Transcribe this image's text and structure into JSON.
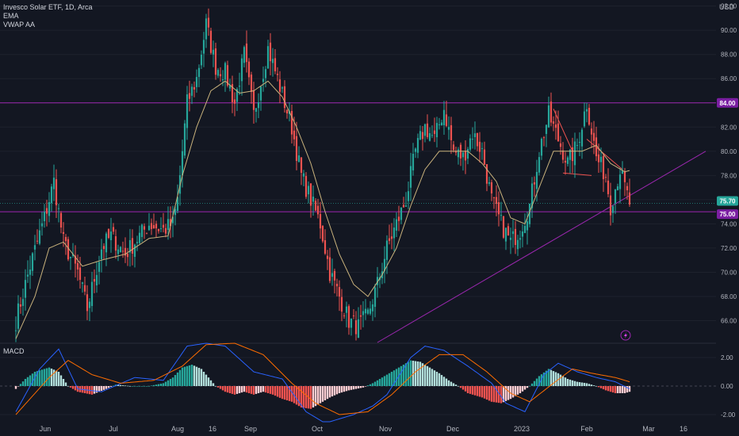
{
  "legend": {
    "title": "Invesco Solar ETF, 1D, Arca",
    "ind1": "EMA",
    "ind2": "VWAP AA"
  },
  "macd_label": "MACD",
  "currency": "USD",
  "colors": {
    "background": "#131722",
    "up": "#26a69a",
    "down": "#ef5350",
    "ema": "#c9b27c",
    "level_line": "#9c27b0",
    "trendline": "#9c27b0",
    "macd_line": "#2962ff",
    "signal_line": "#ff6d00",
    "price_tag": "#26a69a"
  },
  "chart_data": [
    {
      "type": "candlestick",
      "title": "Invesco Solar ETF, 1D, Arca",
      "x_labels": [
        "Jun",
        "Jul",
        "Aug",
        "16",
        "Sep",
        "Oct",
        "Nov",
        "Dec",
        "2023",
        "Feb",
        "Mar",
        "16"
      ],
      "y_ticks": [
        "92.00",
        "90.00",
        "88.00",
        "86.00",
        "84.00",
        "82.00",
        "80.00",
        "78.00",
        "76.00",
        "74.00",
        "72.00",
        "70.00",
        "68.00",
        "66.00"
      ],
      "ylim": [
        64.2,
        92.5
      ],
      "price_tags": [
        {
          "label": "84.00",
          "value": 84.0,
          "color": "#7b1fa2"
        },
        {
          "label": "75.70",
          "value": 75.7,
          "color": "#26a69a"
        },
        {
          "label": "75.00",
          "value": 75.0,
          "color": "#7b1fa2"
        }
      ],
      "horizontal_levels": [
        84.0,
        75.0
      ],
      "close_anchors": [
        [
          0,
          66.0
        ],
        [
          6,
          70.5
        ],
        [
          12,
          74.5
        ],
        [
          16,
          77.5
        ],
        [
          20,
          72.5
        ],
        [
          26,
          70.0
        ],
        [
          30,
          67.0
        ],
        [
          36,
          72.0
        ],
        [
          40,
          73.0
        ],
        [
          46,
          71.5
        ],
        [
          50,
          72.5
        ],
        [
          56,
          74.0
        ],
        [
          62,
          73.5
        ],
        [
          66,
          74.0
        ],
        [
          68,
          76.0
        ],
        [
          72,
          84.0
        ],
        [
          76,
          86.0
        ],
        [
          80,
          90.5
        ],
        [
          84,
          87.0
        ],
        [
          88,
          86.5
        ],
        [
          92,
          84.0
        ],
        [
          96,
          88.0
        ],
        [
          100,
          83.0
        ],
        [
          106,
          88.5
        ],
        [
          110,
          86.0
        ],
        [
          116,
          82.0
        ],
        [
          120,
          78.0
        ],
        [
          124,
          76.0
        ],
        [
          128,
          74.0
        ],
        [
          132,
          70.0
        ],
        [
          136,
          68.0
        ],
        [
          140,
          66.0
        ],
        [
          144,
          65.5
        ],
        [
          148,
          66.5
        ],
        [
          152,
          69.0
        ],
        [
          156,
          72.0
        ],
        [
          160,
          74.0
        ],
        [
          164,
          76.0
        ],
        [
          168,
          80.0
        ],
        [
          172,
          82.0
        ],
        [
          176,
          81.0
        ],
        [
          180,
          83.5
        ],
        [
          184,
          80.0
        ],
        [
          188,
          79.5
        ],
        [
          192,
          81.5
        ],
        [
          196,
          80.0
        ],
        [
          200,
          76.0
        ],
        [
          204,
          74.0
        ],
        [
          208,
          72.5
        ],
        [
          212,
          73.5
        ],
        [
          216,
          75.5
        ],
        [
          220,
          80.0
        ],
        [
          224,
          83.0
        ],
        [
          228,
          81.0
        ],
        [
          232,
          79.0
        ],
        [
          236,
          80.5
        ],
        [
          240,
          84.0
        ],
        [
          244,
          79.5
        ],
        [
          248,
          78.0
        ],
        [
          250,
          75.5
        ],
        [
          252,
          77.0
        ],
        [
          254,
          78.5
        ],
        [
          256,
          77.0
        ],
        [
          258,
          75.7
        ]
      ],
      "ema_anchors": [
        [
          0,
          64.5
        ],
        [
          8,
          68.0
        ],
        [
          14,
          72.0
        ],
        [
          20,
          72.5
        ],
        [
          28,
          70.5
        ],
        [
          36,
          71.0
        ],
        [
          46,
          71.5
        ],
        [
          56,
          72.8
        ],
        [
          64,
          73.0
        ],
        [
          70,
          78.0
        ],
        [
          76,
          82.0
        ],
        [
          82,
          85.0
        ],
        [
          88,
          85.8
        ],
        [
          94,
          84.8
        ],
        [
          100,
          85.0
        ],
        [
          106,
          85.8
        ],
        [
          112,
          84.5
        ],
        [
          118,
          82.0
        ],
        [
          124,
          79.0
        ],
        [
          130,
          75.0
        ],
        [
          136,
          71.5
        ],
        [
          142,
          69.0
        ],
        [
          148,
          68.0
        ],
        [
          154,
          69.8
        ],
        [
          160,
          72.0
        ],
        [
          166,
          75.5
        ],
        [
          172,
          78.5
        ],
        [
          178,
          80.0
        ],
        [
          184,
          80.0
        ],
        [
          190,
          80.0
        ],
        [
          196,
          79.0
        ],
        [
          202,
          77.5
        ],
        [
          208,
          74.5
        ],
        [
          214,
          74.0
        ],
        [
          220,
          77.0
        ],
        [
          226,
          80.0
        ],
        [
          232,
          80.0
        ],
        [
          238,
          80.0
        ],
        [
          244,
          80.5
        ],
        [
          250,
          79.0
        ],
        [
          256,
          78.3
        ]
      ],
      "trendline": {
        "from": [
          152,
          64.2
        ],
        "to": [
          290,
          80.0
        ]
      },
      "pattern_lines": [
        {
          "from": [
            226,
            83.5
          ],
          "to": [
            234,
            80.0
          ]
        },
        {
          "from": [
            230,
            78.2
          ],
          "to": [
            242,
            78.0
          ]
        },
        {
          "from": [
            240,
            81.0
          ],
          "to": [
            255,
            78.5
          ]
        }
      ]
    },
    {
      "type": "histogram",
      "title": "MACD",
      "y_ticks": [
        "2.00",
        "0.00",
        "-2.00"
      ],
      "ylim": [
        -2.5,
        3.0
      ],
      "hist_anchors": [
        [
          0,
          -0.2
        ],
        [
          4,
          0.5
        ],
        [
          8,
          1.0
        ],
        [
          14,
          1.3
        ],
        [
          18,
          1.0
        ],
        [
          22,
          0.0
        ],
        [
          26,
          -0.4
        ],
        [
          32,
          -0.6
        ],
        [
          38,
          -0.2
        ],
        [
          42,
          0.1
        ],
        [
          48,
          0.0
        ],
        [
          56,
          0.0
        ],
        [
          62,
          0.2
        ],
        [
          66,
          0.6
        ],
        [
          70,
          1.3
        ],
        [
          74,
          1.5
        ],
        [
          78,
          1.2
        ],
        [
          82,
          0.4
        ],
        [
          84,
          0.0
        ],
        [
          88,
          -0.4
        ],
        [
          92,
          -0.6
        ],
        [
          96,
          -0.4
        ],
        [
          100,
          -0.6
        ],
        [
          104,
          -0.4
        ],
        [
          108,
          -0.6
        ],
        [
          112,
          -0.9
        ],
        [
          116,
          -1.1
        ],
        [
          120,
          -1.5
        ],
        [
          124,
          -1.6
        ],
        [
          128,
          -1.2
        ],
        [
          132,
          -0.8
        ],
        [
          136,
          -0.5
        ],
        [
          140,
          -0.3
        ],
        [
          146,
          -0.1
        ],
        [
          150,
          0.2
        ],
        [
          154,
          0.6
        ],
        [
          158,
          1.0
        ],
        [
          162,
          1.4
        ],
        [
          166,
          1.8
        ],
        [
          170,
          1.7
        ],
        [
          174,
          1.3
        ],
        [
          178,
          0.9
        ],
        [
          182,
          0.4
        ],
        [
          186,
          0.0
        ],
        [
          190,
          -0.5
        ],
        [
          196,
          -0.8
        ],
        [
          200,
          -1.1
        ],
        [
          204,
          -1.2
        ],
        [
          208,
          -0.9
        ],
        [
          212,
          -0.5
        ],
        [
          216,
          0.0
        ],
        [
          220,
          0.7
        ],
        [
          224,
          1.2
        ],
        [
          228,
          0.9
        ],
        [
          232,
          0.5
        ],
        [
          236,
          0.3
        ],
        [
          240,
          0.2
        ],
        [
          244,
          0.0
        ],
        [
          248,
          -0.3
        ],
        [
          252,
          -0.5
        ],
        [
          256,
          -0.5
        ],
        [
          258,
          -0.4
        ]
      ],
      "macd_anchors": [
        [
          0,
          -1.8
        ],
        [
          10,
          1.2
        ],
        [
          18,
          2.6
        ],
        [
          26,
          -0.2
        ],
        [
          36,
          -0.4
        ],
        [
          50,
          0.6
        ],
        [
          62,
          0.4
        ],
        [
          72,
          2.8
        ],
        [
          80,
          3.0
        ],
        [
          88,
          2.8
        ],
        [
          100,
          1.0
        ],
        [
          112,
          0.5
        ],
        [
          122,
          -1.8
        ],
        [
          130,
          -2.6
        ],
        [
          142,
          -2.0
        ],
        [
          150,
          -1.4
        ],
        [
          156,
          -0.6
        ],
        [
          166,
          2.0
        ],
        [
          172,
          2.8
        ],
        [
          180,
          2.5
        ],
        [
          190,
          1.4
        ],
        [
          200,
          0.2
        ],
        [
          206,
          -1.2
        ],
        [
          214,
          -1.8
        ],
        [
          222,
          0.8
        ],
        [
          228,
          1.6
        ],
        [
          236,
          1.0
        ],
        [
          244,
          0.6
        ],
        [
          252,
          0.3
        ],
        [
          258,
          -0.2
        ]
      ],
      "signal_anchors": [
        [
          0,
          -2.0
        ],
        [
          14,
          0.6
        ],
        [
          22,
          1.8
        ],
        [
          32,
          0.8
        ],
        [
          44,
          0.2
        ],
        [
          58,
          0.4
        ],
        [
          70,
          1.4
        ],
        [
          80,
          2.9
        ],
        [
          92,
          3.0
        ],
        [
          104,
          2.2
        ],
        [
          116,
          0.2
        ],
        [
          126,
          -1.2
        ],
        [
          136,
          -2.0
        ],
        [
          148,
          -1.8
        ],
        [
          158,
          -0.6
        ],
        [
          168,
          1.0
        ],
        [
          178,
          2.2
        ],
        [
          188,
          2.2
        ],
        [
          198,
          1.0
        ],
        [
          208,
          -0.5
        ],
        [
          216,
          -1.1
        ],
        [
          226,
          0.2
        ],
        [
          234,
          1.2
        ],
        [
          242,
          0.9
        ],
        [
          252,
          0.6
        ],
        [
          258,
          0.3
        ]
      ]
    }
  ]
}
